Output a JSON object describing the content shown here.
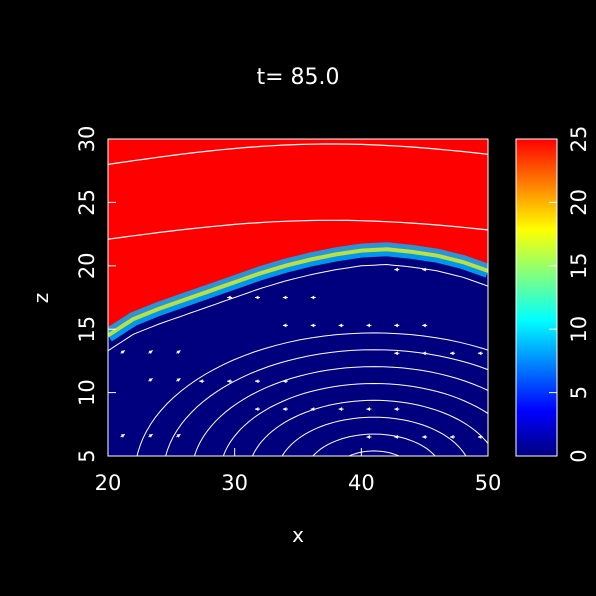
{
  "chart_data": {
    "type": "heatmap",
    "title": "t=  85.0",
    "xlabel": "x",
    "ylabel": "z",
    "xlim": [
      20,
      50
    ],
    "ylim": [
      5,
      30
    ],
    "x_ticks": [
      "20",
      "30",
      "40",
      "50"
    ],
    "y_ticks": [
      "5",
      "10",
      "15",
      "20",
      "25",
      "30"
    ],
    "colorbar": {
      "range": [
        0,
        25
      ],
      "ticks": [
        "0",
        "5",
        "10",
        "15",
        "20",
        "25"
      ],
      "colors": [
        "#00007f",
        "#0000ff",
        "#0080ff",
        "#00ffff",
        "#80ff80",
        "#ffff00",
        "#ff8000",
        "#ff0000"
      ]
    },
    "interface_boundary": {
      "description_values": "interface height z at x",
      "x": [
        20,
        22,
        24,
        26,
        28,
        30,
        32,
        34,
        36,
        38,
        40,
        42,
        44,
        46,
        48,
        50
      ],
      "z": [
        14.5,
        15.8,
        16.6,
        17.3,
        18.0,
        18.7,
        19.4,
        20.0,
        20.5,
        20.9,
        21.2,
        21.3,
        21.1,
        20.8,
        20.3,
        19.6
      ]
    },
    "upper_field_value": 25,
    "lower_field_value": 1
  }
}
